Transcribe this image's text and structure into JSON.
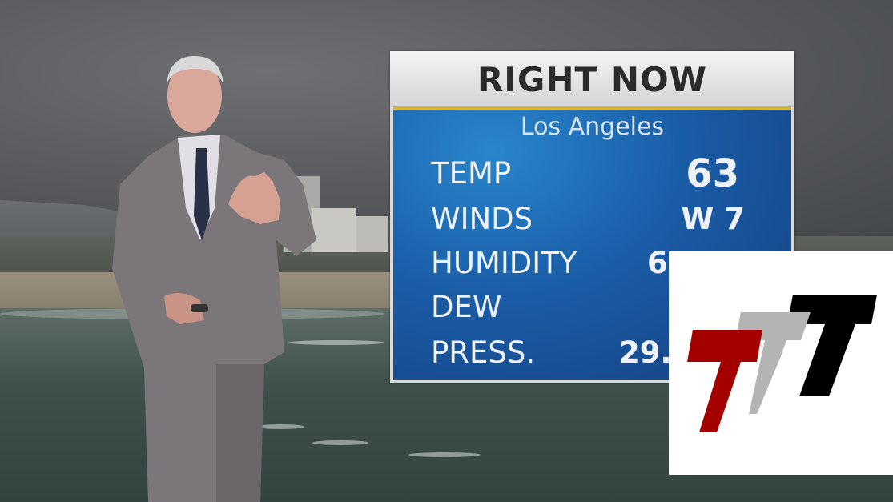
{
  "graphic": {
    "title": "RIGHT NOW",
    "location": "Los Angeles",
    "rows": [
      {
        "label": "TEMP",
        "value": "63"
      },
      {
        "label": "WINDS",
        "value": "W 7"
      },
      {
        "label": "HUMIDITY",
        "value": "6"
      },
      {
        "label": "DEW",
        "value": ""
      },
      {
        "label": "PRESS.",
        "value": "29."
      }
    ],
    "colors": {
      "header": "#e6e6e6",
      "panel": "#1a5da7",
      "accent_line": "#d4b53c"
    }
  },
  "logo": {
    "text": "TTT",
    "colors": [
      "#a50000",
      "#b4b4b4",
      "#000000"
    ]
  }
}
